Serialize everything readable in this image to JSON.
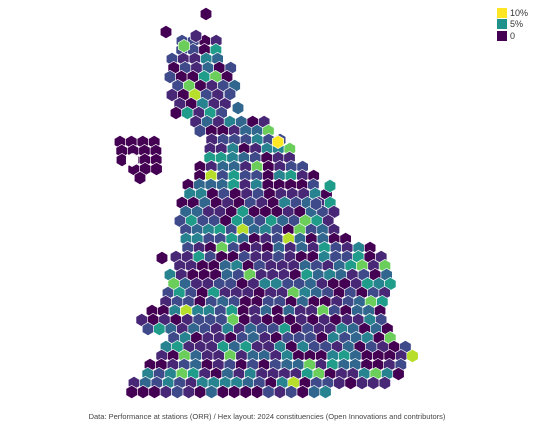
{
  "legend": {
    "items": [
      {
        "label": "10%",
        "color": "#fde725"
      },
      {
        "label": "5%",
        "color": "#21918c"
      },
      {
        "label": "0",
        "color": "#440154"
      }
    ]
  },
  "credit": "Data: Performance at stations (ORR) / Hex layout: 2024 constituencies (Open Innovations and contributors)",
  "colors": {
    "scale": [
      "#440154",
      "#482777",
      "#3f4a8a",
      "#31678e",
      "#26838f",
      "#1f9d8a",
      "#6cce5a",
      "#b6de2b",
      "#fee825"
    ],
    "outline": "#ffffff"
  },
  "chart_data": {
    "type": "hex map",
    "color_scale": {
      "min": 0,
      "mid": 5,
      "max": 10,
      "unit": "%",
      "palette": "viridis"
    }
  }
}
